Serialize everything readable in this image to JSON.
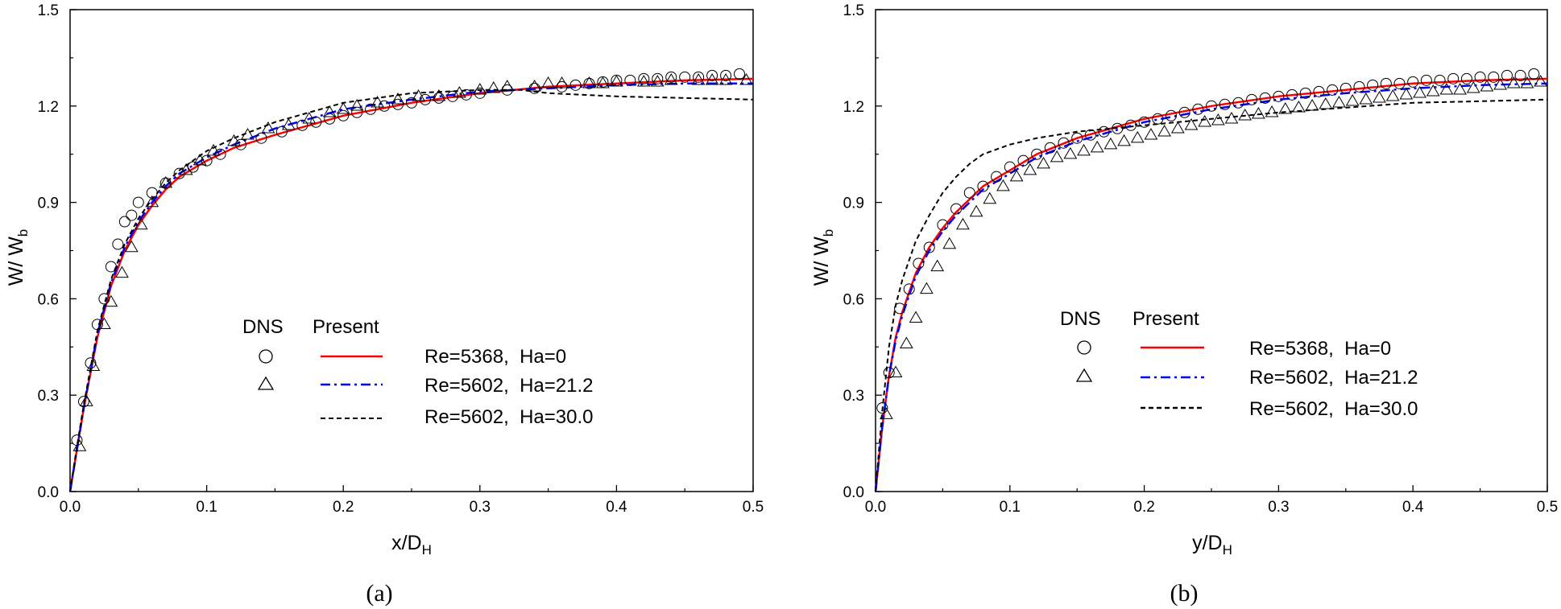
{
  "figure": {
    "panels": [
      {
        "caption": "(a)",
        "ylabel": {
          "main": "W/ W",
          "sub": "b"
        },
        "xlabel": {
          "main": "x/D",
          "sub": "H"
        },
        "legend": {
          "dns_header": "DNS",
          "present_header": "Present",
          "entries": [
            {
              "label": "Re=5368,  Ha=0"
            },
            {
              "label": "Re=5602,  Ha=21.2"
            },
            {
              "label": "Re=5602,  Ha=30.0"
            }
          ]
        }
      },
      {
        "caption": "(b)",
        "ylabel": {
          "main": "W/ W",
          "sub": "b"
        },
        "xlabel": {
          "main": "y/D",
          "sub": "H"
        },
        "legend": {
          "dns_header": "DNS",
          "present_header": "Present",
          "entries": [
            {
              "label": "Re=5368,  Ha=0"
            },
            {
              "label": "Re=5602,  Ha=21.2"
            },
            {
              "label": "Re=5602,  Ha=30.0"
            }
          ]
        }
      }
    ]
  },
  "chart_data": [
    {
      "type": "line",
      "xlim": [
        0,
        0.5
      ],
      "ylim": [
        0,
        1.5
      ],
      "xticks": [
        "0.0",
        "0.1",
        "0.2",
        "0.3",
        "0.4",
        "0.5"
      ],
      "yticks": [
        "0.0",
        "0.3",
        "0.6",
        "0.9",
        "1.2",
        "1.5"
      ],
      "legend_position": "lower-right",
      "series": [
        {
          "name": "Re=5368,  Ha=0",
          "kind": "line",
          "style": "solid",
          "color": "#ff0000",
          "x": [
            0,
            0.005,
            0.01,
            0.02,
            0.03,
            0.04,
            0.05,
            0.06,
            0.07,
            0.08,
            0.1,
            0.12,
            0.15,
            0.2,
            0.25,
            0.3,
            0.35,
            0.4,
            0.45,
            0.5
          ],
          "y": [
            0,
            0.13,
            0.26,
            0.48,
            0.64,
            0.75,
            0.83,
            0.89,
            0.94,
            0.98,
            1.03,
            1.07,
            1.11,
            1.17,
            1.21,
            1.24,
            1.26,
            1.27,
            1.28,
            1.285
          ]
        },
        {
          "name": "Re=5602,  Ha=21.2",
          "kind": "line",
          "style": "dashdot",
          "color": "#0000ff",
          "x": [
            0,
            0.005,
            0.01,
            0.02,
            0.03,
            0.04,
            0.05,
            0.06,
            0.07,
            0.08,
            0.1,
            0.12,
            0.15,
            0.2,
            0.25,
            0.3,
            0.35,
            0.4,
            0.45,
            0.5
          ],
          "y": [
            0,
            0.13,
            0.26,
            0.49,
            0.65,
            0.76,
            0.84,
            0.9,
            0.95,
            0.99,
            1.04,
            1.08,
            1.13,
            1.19,
            1.22,
            1.245,
            1.255,
            1.265,
            1.27,
            1.27
          ]
        },
        {
          "name": "Re=5602,  Ha=30.0",
          "kind": "line",
          "style": "dash",
          "color": "#000000",
          "x": [
            0,
            0.005,
            0.01,
            0.02,
            0.03,
            0.04,
            0.05,
            0.06,
            0.07,
            0.08,
            0.1,
            0.12,
            0.15,
            0.2,
            0.25,
            0.3,
            0.33,
            0.35,
            0.4,
            0.45,
            0.5
          ],
          "y": [
            0,
            0.14,
            0.27,
            0.5,
            0.66,
            0.77,
            0.85,
            0.91,
            0.96,
            1.0,
            1.06,
            1.1,
            1.15,
            1.21,
            1.24,
            1.25,
            1.25,
            1.24,
            1.23,
            1.225,
            1.22
          ]
        },
        {
          "name": "DNS circles",
          "kind": "marker",
          "marker": "circle",
          "x": [
            0.005,
            0.01,
            0.015,
            0.02,
            0.025,
            0.03,
            0.035,
            0.04,
            0.045,
            0.05,
            0.06,
            0.07,
            0.08,
            0.09,
            0.1,
            0.11,
            0.125,
            0.14,
            0.155,
            0.17,
            0.18,
            0.19,
            0.2,
            0.21,
            0.22,
            0.23,
            0.24,
            0.25,
            0.26,
            0.27,
            0.28,
            0.29,
            0.3,
            0.32,
            0.34,
            0.36,
            0.37,
            0.38,
            0.39,
            0.4,
            0.41,
            0.42,
            0.43,
            0.44,
            0.45,
            0.46,
            0.47,
            0.48,
            0.49
          ],
          "y": [
            0.16,
            0.28,
            0.4,
            0.52,
            0.6,
            0.7,
            0.77,
            0.84,
            0.86,
            0.9,
            0.93,
            0.96,
            0.99,
            1.01,
            1.03,
            1.05,
            1.08,
            1.1,
            1.12,
            1.14,
            1.15,
            1.16,
            1.17,
            1.18,
            1.19,
            1.2,
            1.205,
            1.21,
            1.22,
            1.225,
            1.23,
            1.235,
            1.24,
            1.25,
            1.255,
            1.26,
            1.265,
            1.27,
            1.275,
            1.28,
            1.28,
            1.285,
            1.285,
            1.29,
            1.29,
            1.29,
            1.295,
            1.295,
            1.3
          ]
        },
        {
          "name": "DNS triangles",
          "kind": "marker",
          "marker": "triangle",
          "x": [
            0.007,
            0.012,
            0.017,
            0.025,
            0.03,
            0.038,
            0.045,
            0.052,
            0.06,
            0.07,
            0.085,
            0.095,
            0.105,
            0.12,
            0.13,
            0.145,
            0.16,
            0.175,
            0.19,
            0.2,
            0.21,
            0.225,
            0.24,
            0.255,
            0.27,
            0.285,
            0.3,
            0.31,
            0.32,
            0.34,
            0.35,
            0.36,
            0.38,
            0.39,
            0.4,
            0.42,
            0.43,
            0.44,
            0.46,
            0.47,
            0.48,
            0.495
          ],
          "y": [
            0.14,
            0.28,
            0.39,
            0.52,
            0.59,
            0.68,
            0.76,
            0.83,
            0.9,
            0.96,
            1.0,
            1.03,
            1.06,
            1.09,
            1.11,
            1.13,
            1.14,
            1.16,
            1.18,
            1.19,
            1.2,
            1.21,
            1.22,
            1.23,
            1.23,
            1.24,
            1.25,
            1.255,
            1.26,
            1.26,
            1.27,
            1.27,
            1.27,
            1.27,
            1.275,
            1.275,
            1.275,
            1.28,
            1.28,
            1.28,
            1.28,
            1.28
          ]
        }
      ]
    },
    {
      "type": "line",
      "xlim": [
        0,
        0.5
      ],
      "ylim": [
        0,
        1.5
      ],
      "xticks": [
        "0.0",
        "0.1",
        "0.2",
        "0.3",
        "0.4",
        "0.5"
      ],
      "yticks": [
        "0.0",
        "0.3",
        "0.6",
        "0.9",
        "1.2",
        "1.5"
      ],
      "legend_position": "lower-right",
      "series": [
        {
          "name": "Re=5368,  Ha=0",
          "kind": "line",
          "style": "solid",
          "color": "#ff0000",
          "x": [
            0,
            0.005,
            0.01,
            0.015,
            0.02,
            0.03,
            0.04,
            0.05,
            0.06,
            0.07,
            0.08,
            0.1,
            0.12,
            0.15,
            0.2,
            0.25,
            0.3,
            0.35,
            0.4,
            0.45,
            0.5
          ],
          "y": [
            0,
            0.2,
            0.36,
            0.48,
            0.56,
            0.68,
            0.76,
            0.82,
            0.87,
            0.91,
            0.95,
            1.0,
            1.05,
            1.1,
            1.16,
            1.2,
            1.23,
            1.25,
            1.27,
            1.28,
            1.285
          ]
        },
        {
          "name": "Re=5602,  Ha=21.2",
          "kind": "line",
          "style": "dashdot",
          "color": "#0000ff",
          "x": [
            0,
            0.005,
            0.01,
            0.015,
            0.02,
            0.03,
            0.04,
            0.05,
            0.06,
            0.07,
            0.08,
            0.1,
            0.12,
            0.15,
            0.2,
            0.25,
            0.3,
            0.35,
            0.4,
            0.45,
            0.5
          ],
          "y": [
            0,
            0.2,
            0.36,
            0.47,
            0.55,
            0.67,
            0.75,
            0.81,
            0.86,
            0.9,
            0.94,
            0.99,
            1.04,
            1.09,
            1.15,
            1.19,
            1.22,
            1.24,
            1.255,
            1.265,
            1.27
          ]
        },
        {
          "name": "Re=5602,  Ha=30.0",
          "kind": "line",
          "style": "dash",
          "color": "#000000",
          "x": [
            0,
            0.005,
            0.01,
            0.015,
            0.02,
            0.03,
            0.04,
            0.05,
            0.06,
            0.07,
            0.08,
            0.1,
            0.12,
            0.15,
            0.2,
            0.25,
            0.3,
            0.35,
            0.4,
            0.45,
            0.5
          ],
          "y": [
            0,
            0.25,
            0.45,
            0.58,
            0.66,
            0.78,
            0.86,
            0.93,
            0.98,
            1.02,
            1.05,
            1.08,
            1.1,
            1.12,
            1.14,
            1.16,
            1.18,
            1.195,
            1.21,
            1.215,
            1.22
          ]
        },
        {
          "name": "DNS circles",
          "kind": "marker",
          "marker": "circle",
          "x": [
            0.005,
            0.01,
            0.018,
            0.025,
            0.032,
            0.04,
            0.05,
            0.06,
            0.07,
            0.08,
            0.09,
            0.1,
            0.11,
            0.12,
            0.13,
            0.14,
            0.15,
            0.16,
            0.17,
            0.18,
            0.19,
            0.2,
            0.21,
            0.22,
            0.23,
            0.24,
            0.25,
            0.26,
            0.27,
            0.28,
            0.29,
            0.3,
            0.31,
            0.32,
            0.33,
            0.34,
            0.35,
            0.36,
            0.37,
            0.38,
            0.39,
            0.4,
            0.41,
            0.42,
            0.43,
            0.44,
            0.45,
            0.46,
            0.47,
            0.48,
            0.49
          ],
          "y": [
            0.26,
            0.37,
            0.57,
            0.63,
            0.71,
            0.76,
            0.83,
            0.88,
            0.93,
            0.95,
            0.98,
            1.01,
            1.03,
            1.05,
            1.07,
            1.085,
            1.1,
            1.11,
            1.12,
            1.13,
            1.14,
            1.15,
            1.16,
            1.17,
            1.18,
            1.19,
            1.2,
            1.205,
            1.21,
            1.22,
            1.225,
            1.23,
            1.235,
            1.24,
            1.245,
            1.25,
            1.255,
            1.26,
            1.265,
            1.27,
            1.27,
            1.275,
            1.28,
            1.28,
            1.285,
            1.285,
            1.29,
            1.29,
            1.295,
            1.295,
            1.3
          ]
        },
        {
          "name": "DNS triangles",
          "kind": "marker",
          "marker": "triangle",
          "x": [
            0.008,
            0.015,
            0.023,
            0.03,
            0.038,
            0.046,
            0.055,
            0.065,
            0.075,
            0.085,
            0.095,
            0.105,
            0.115,
            0.125,
            0.135,
            0.145,
            0.155,
            0.165,
            0.175,
            0.185,
            0.195,
            0.205,
            0.215,
            0.225,
            0.235,
            0.245,
            0.255,
            0.265,
            0.275,
            0.285,
            0.295,
            0.305,
            0.315,
            0.325,
            0.335,
            0.345,
            0.355,
            0.365,
            0.375,
            0.385,
            0.395,
            0.405,
            0.415,
            0.425,
            0.435,
            0.445,
            0.455,
            0.465,
            0.475,
            0.485,
            0.495
          ],
          "y": [
            0.24,
            0.37,
            0.46,
            0.54,
            0.63,
            0.7,
            0.77,
            0.83,
            0.87,
            0.91,
            0.95,
            0.98,
            1.0,
            1.02,
            1.04,
            1.05,
            1.06,
            1.07,
            1.08,
            1.09,
            1.1,
            1.11,
            1.12,
            1.13,
            1.14,
            1.15,
            1.155,
            1.16,
            1.17,
            1.175,
            1.18,
            1.19,
            1.195,
            1.2,
            1.205,
            1.21,
            1.215,
            1.22,
            1.225,
            1.23,
            1.235,
            1.24,
            1.245,
            1.25,
            1.25,
            1.255,
            1.26,
            1.265,
            1.27,
            1.27,
            1.275
          ]
        }
      ]
    }
  ]
}
